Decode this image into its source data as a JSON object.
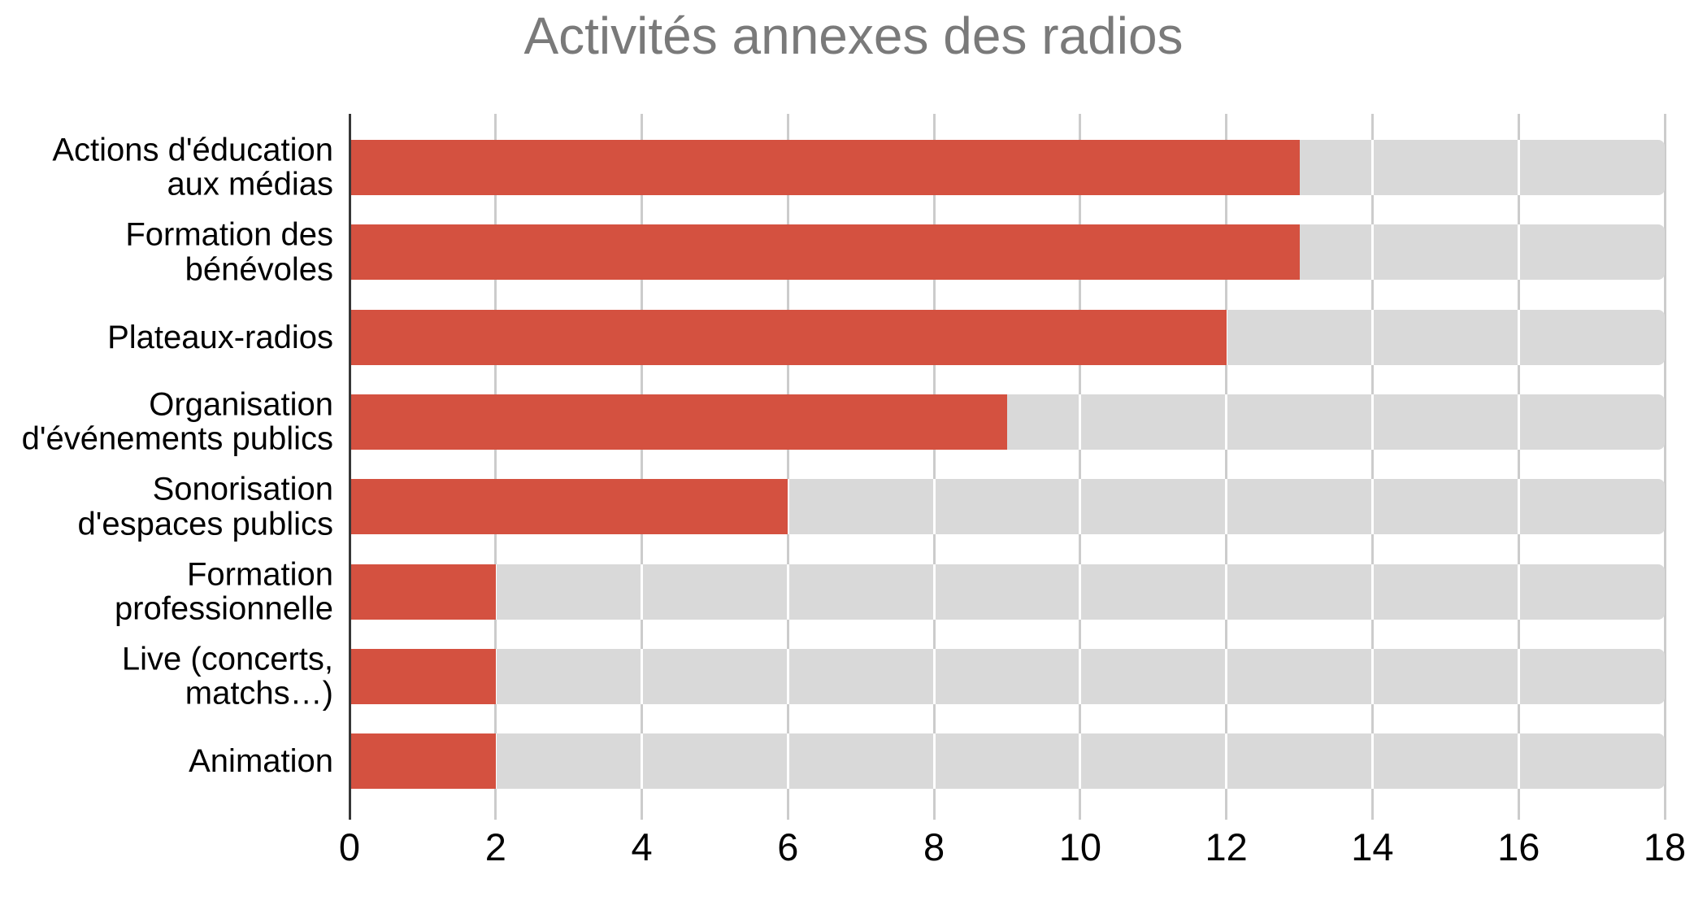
{
  "chart_data": {
    "type": "bar",
    "orientation": "horizontal",
    "title": "Activités annexes des radios",
    "categories": [
      "Actions d'éducation\naux médias",
      "Formation des\nbénévoles",
      "Plateaux-radios",
      "Organisation\nd'événements publics",
      "Sonorisation\nd'espaces publics",
      "Formation\nprofessionnelle",
      "Live (concerts,\nmatchs…)",
      "Animation"
    ],
    "values": [
      13,
      13,
      12,
      9,
      6,
      2,
      2,
      2
    ],
    "xlabel": "",
    "ylabel": "",
    "xlim": [
      0,
      18
    ],
    "xticks": [
      0,
      2,
      4,
      6,
      8,
      10,
      12,
      14,
      16,
      18
    ],
    "track_full_value": 18,
    "grid": true,
    "legend": false
  },
  "colors": {
    "bar": "#d45140",
    "track": "#d9d9d9",
    "gridline": "#cccccc",
    "gridline_on_track": "#ffffff",
    "axis_line": "#373737",
    "title": "#7a7a7a",
    "category_label": "#000000",
    "tick_label": "#000000",
    "background": "#ffffff"
  }
}
